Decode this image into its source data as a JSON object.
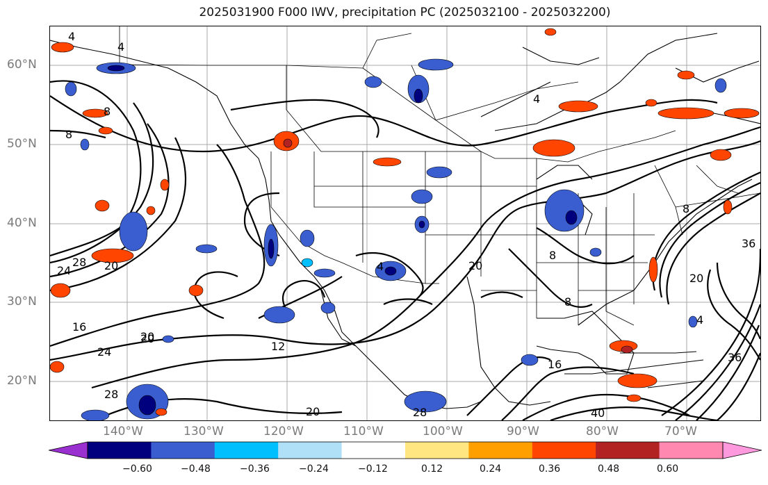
{
  "title": "2025031900 F000 IWV, precipitation PC (2025032100 - 2025032200)",
  "map": {
    "lat_labels": [
      "60°N",
      "50°N",
      "40°N",
      "30°N",
      "20°N"
    ],
    "lon_labels": [
      "140°W",
      "130°W",
      "120°W",
      "110°W",
      "100°W",
      "90°W",
      "80°W",
      "70°W"
    ],
    "grid_color": "#a9a9a9",
    "contour_color": "#000000",
    "contour_labels": [
      "4",
      "4",
      "4",
      "8",
      "8",
      "8",
      "16",
      "20",
      "20",
      "24",
      "24",
      "28",
      "28",
      "12",
      "20",
      "4",
      "20",
      "8",
      "8",
      "16",
      "20",
      "28",
      "40",
      "36",
      "20",
      "4",
      "36"
    ]
  },
  "colorbar": {
    "colors": [
      "#9b30d0",
      "#00007f",
      "#3a5ed0",
      "#00bfff",
      "#b0e0f8",
      "#ffffff",
      "#ffe680",
      "#ffa000",
      "#ff4500",
      "#b22222",
      "#ff88b0",
      "#ff99dd"
    ],
    "tick_labels": [
      "−0.60",
      "−0.48",
      "−0.36",
      "−0.24",
      "−0.12",
      "0.12",
      "0.24",
      "0.36",
      "0.48",
      "0.60"
    ]
  }
}
